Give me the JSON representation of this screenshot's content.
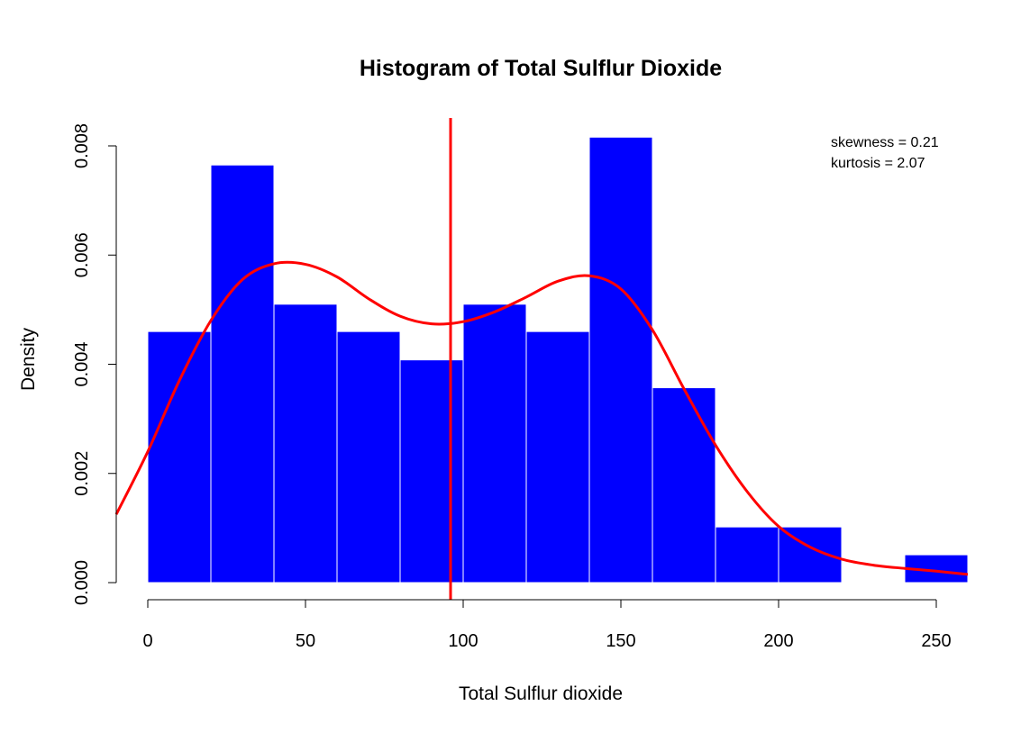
{
  "chart_data": {
    "type": "bar",
    "title": "Histogram of Total Sulflur Dioxide",
    "xlabel": "Total Sulflur dioxide",
    "ylabel": "Density",
    "xlim": [
      -10,
      260
    ],
    "ylim": [
      0,
      0.0085
    ],
    "x_ticks": [
      0,
      50,
      100,
      150,
      200,
      250
    ],
    "x_tick_labels": [
      "0",
      "50",
      "100",
      "150",
      "200",
      "250"
    ],
    "y_ticks": [
      0,
      0.002,
      0.004,
      0.006,
      0.008
    ],
    "y_tick_labels": [
      "0.000",
      "0.002",
      "0.004",
      "0.006",
      "0.008"
    ],
    "bin_edges": [
      0,
      20,
      40,
      60,
      80,
      100,
      120,
      140,
      160,
      180,
      200,
      220,
      240,
      260
    ],
    "values": [
      0.0046,
      0.00765,
      0.0051,
      0.0046,
      0.00408,
      0.0051,
      0.0046,
      0.00816,
      0.00357,
      0.00102,
      0.00102,
      0,
      0.00051
    ],
    "bar_color": "#0000ff",
    "bar_border_color": "#ffffff",
    "density_curve": {
      "color": "#ff0000",
      "x": [
        -10,
        0,
        10,
        20,
        30,
        40,
        50,
        60,
        70,
        80,
        90,
        100,
        110,
        120,
        130,
        140,
        150,
        160,
        170,
        180,
        190,
        200,
        210,
        220,
        230,
        240,
        250,
        260
      ],
      "y": [
        0.00125,
        0.0024,
        0.0037,
        0.0048,
        0.00555,
        0.00584,
        0.00583,
        0.0056,
        0.0052,
        0.00488,
        0.00474,
        0.00478,
        0.00496,
        0.00523,
        0.00552,
        0.00562,
        0.00538,
        0.00463,
        0.00355,
        0.00252,
        0.00167,
        0.00103,
        0.00065,
        0.00043,
        0.00032,
        0.00026,
        0.00021,
        0.00015
      ]
    },
    "mean_line": {
      "x": 96,
      "color": "#ff0000"
    },
    "annotations": [
      "skewness = 0.21",
      "kurtosis = 2.07"
    ],
    "grid": false,
    "legend": "none"
  }
}
